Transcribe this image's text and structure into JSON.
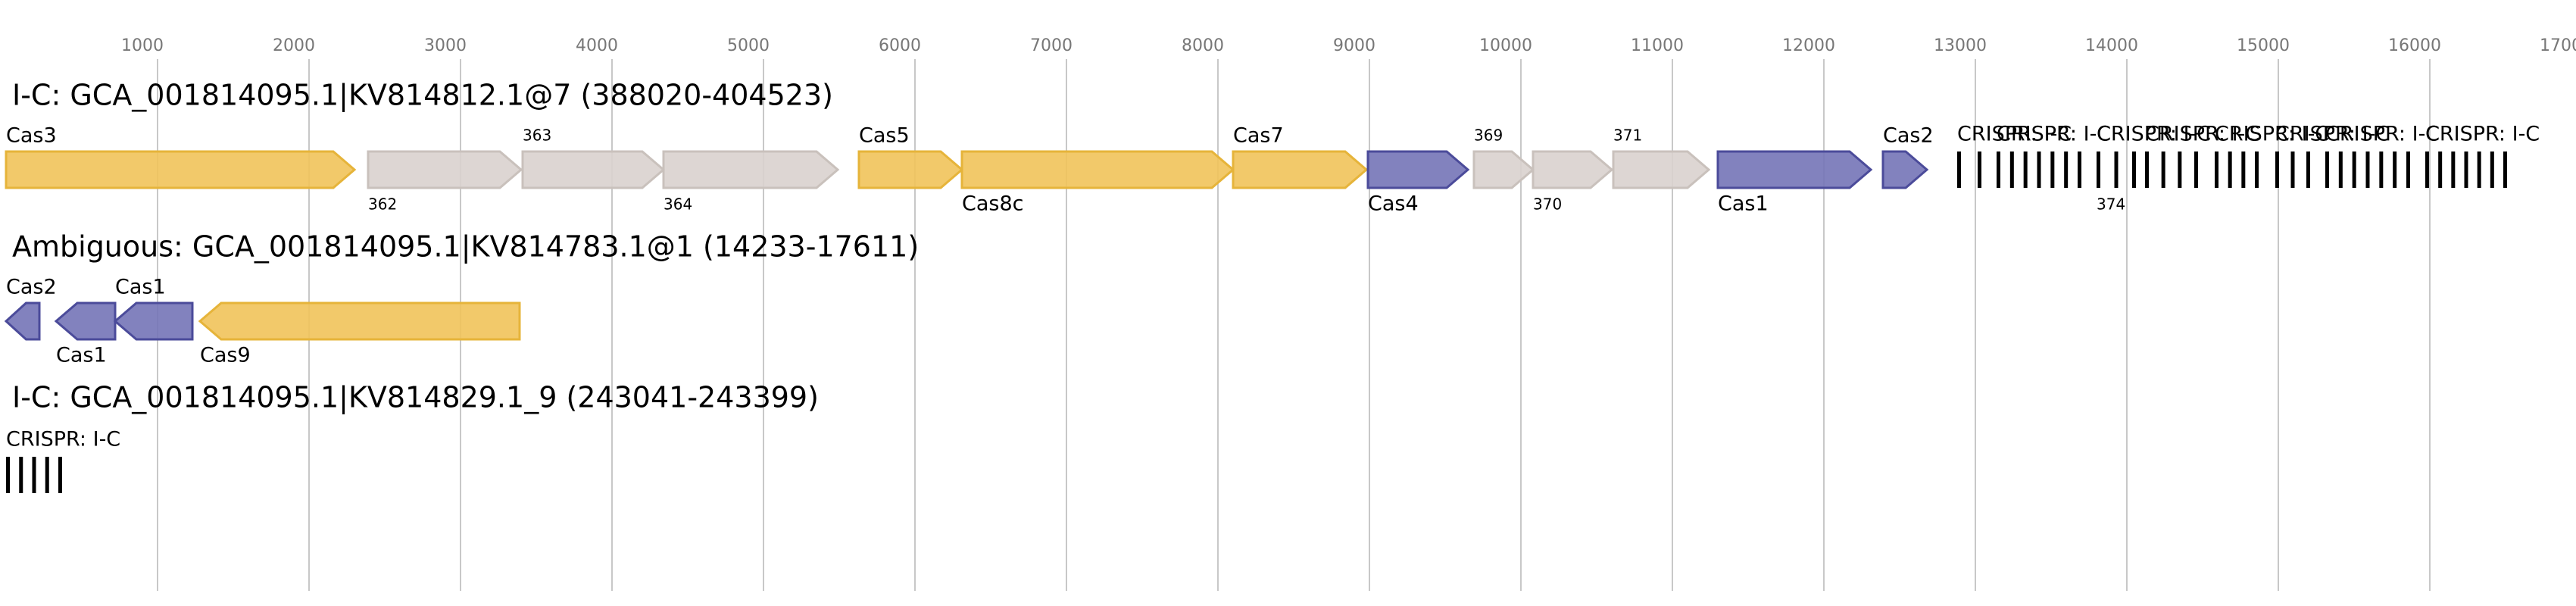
{
  "axis": {
    "xlim": [
      -40,
      16965
    ],
    "xticks": [
      1000,
      2000,
      3000,
      4000,
      5000,
      6000,
      7000,
      8000,
      9000,
      10000,
      11000,
      12000,
      13000,
      14000,
      15000,
      16000,
      17000
    ]
  },
  "tracks": [
    {
      "title": "I-C: GCA_001814095.1|KV814812.1@7 (388020-404523)",
      "genes": [
        {
          "label": "Cas3",
          "start": 0,
          "end": 2300,
          "strand": 1,
          "color": "#f1c35a"
        },
        {
          "label": "362",
          "start": 2390,
          "end": 3400,
          "strand": 1,
          "color": "#d9d2ce"
        },
        {
          "label": "363",
          "start": 3410,
          "end": 4340,
          "strand": 1,
          "color": "#d9d2ce"
        },
        {
          "label": "364",
          "start": 4340,
          "end": 5490,
          "strand": 1,
          "color": "#d9d2ce"
        },
        {
          "label": "Cas5",
          "start": 5630,
          "end": 6310,
          "strand": 1,
          "color": "#f1c35a"
        },
        {
          "label": "Cas8c",
          "start": 6310,
          "end": 8100,
          "strand": 1,
          "color": "#f1c35a"
        },
        {
          "label": "Cas7",
          "start": 8100,
          "end": 8980,
          "strand": 1,
          "color": "#f1c35a"
        },
        {
          "label": "Cas4",
          "start": 8990,
          "end": 9650,
          "strand": 1,
          "color": "#7474b7"
        },
        {
          "label": "369",
          "start": 9690,
          "end": 10080,
          "strand": 1,
          "color": "#d9d2ce"
        },
        {
          "label": "370",
          "start": 10080,
          "end": 10600,
          "strand": 1,
          "color": "#d9d2ce"
        },
        {
          "label": "371",
          "start": 10610,
          "end": 11240,
          "strand": 1,
          "color": "#d9d2ce"
        },
        {
          "label": "Cas1",
          "start": 11300,
          "end": 12310,
          "strand": 1,
          "color": "#7474b7"
        },
        {
          "label": "Cas2",
          "start": 12390,
          "end": 12680,
          "strand": 1,
          "color": "#7474b7"
        },
        {
          "label": "CRISPR: I-C",
          "start": 12880,
          "end": 13040,
          "strand": 0,
          "color": "#000000"
        },
        {
          "label": "CRISPR: I-C",
          "start": 13140,
          "end": 13700,
          "strand": 0,
          "color": "#000000"
        },
        {
          "label": "CRISPR: I-C",
          "start": 13800,
          "end": 14060,
          "strand": 0,
          "color": "#000000"
        },
        {
          "label": "CRISPR: I-C",
          "start": 14120,
          "end": 14470,
          "strand": 0,
          "color": "#000000"
        },
        {
          "label": "CRISPR: I-C",
          "start": 14580,
          "end": 14870,
          "strand": 0,
          "color": "#000000"
        },
        {
          "label": "CRISPR: I-C",
          "start": 14980,
          "end": 15210,
          "strand": 0,
          "color": "#000000"
        },
        {
          "label": "CRISPR: I-C",
          "start": 15310,
          "end": 15870,
          "strand": 0,
          "color": "#000000"
        },
        {
          "label": "CRISPR: I-C",
          "start": 15970,
          "end": 16510,
          "strand": 0,
          "color": "#000000"
        }
      ],
      "extra_label": {
        "label": "374",
        "at": 13800
      }
    },
    {
      "title": "Ambiguous: GCA_001814095.1|KV814783.1@1 (14233-17611)",
      "genes": [
        {
          "label": "Cas2",
          "start": 0,
          "end": 220,
          "strand": -1,
          "color": "#7474b7"
        },
        {
          "label": "Cas1",
          "start": 330,
          "end": 720,
          "strand": -1,
          "color": "#7474b7"
        },
        {
          "label": "Cas1",
          "start": 720,
          "end": 1230,
          "strand": -1,
          "color": "#7474b7"
        },
        {
          "label": "Cas9",
          "start": 1280,
          "end": 3390,
          "strand": -1,
          "color": "#f1c35a"
        }
      ]
    },
    {
      "title": "I-C: GCA_001814095.1|KV814829.1_9 (243041-243399)",
      "genes": [
        {
          "label": "CRISPR: I-C",
          "start": 0,
          "end": 370,
          "strand": 0,
          "color": "#000000"
        }
      ]
    }
  ]
}
